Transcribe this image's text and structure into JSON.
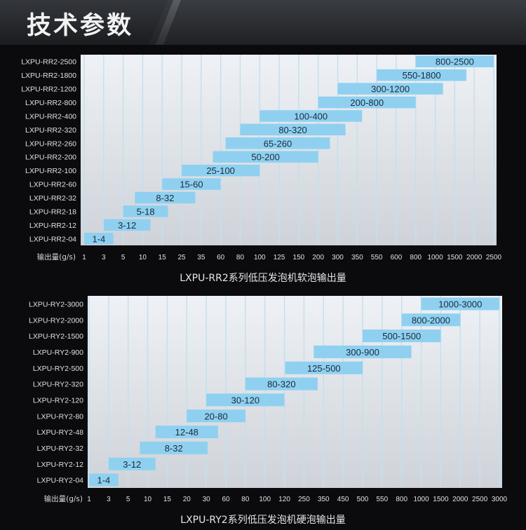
{
  "header": {
    "title": "技术参数"
  },
  "chart_data": [
    {
      "type": "bar",
      "caption": "LXPU-RR2系列低压发泡机软泡输出量",
      "xlabel": "输出量(g/s)",
      "x_ticks": [
        "1",
        "3",
        "5",
        "10",
        "15",
        "25",
        "35",
        "60",
        "80",
        "100",
        "125",
        "150",
        "200",
        "300",
        "350",
        "550",
        "600",
        "800",
        "1000",
        "1500",
        "2000",
        "2500"
      ],
      "bar_color": "#8fd0f0",
      "models": [
        {
          "name": "LXPU-RR2-2500",
          "label": "800-2500",
          "min": 800,
          "max": 2500
        },
        {
          "name": "LXPU-RR2-1800",
          "label": "550-1800",
          "min": 550,
          "max": 1800
        },
        {
          "name": "LXPU-RR2-1200",
          "label": "300-1200",
          "min": 300,
          "max": 1200
        },
        {
          "name": "LXPU-RR2-800",
          "label": "200-800",
          "min": 200,
          "max": 800
        },
        {
          "name": "LXPU-RR2-400",
          "label": "100-400",
          "min": 100,
          "max": 400
        },
        {
          "name": "LXPU-RR2-320",
          "label": "80-320",
          "min": 80,
          "max": 320
        },
        {
          "name": "LXPU-RR2-260",
          "label": "65-260",
          "min": 65,
          "max": 260
        },
        {
          "name": "LXPU-RR2-200",
          "label": "50-200",
          "min": 50,
          "max": 200
        },
        {
          "name": "LXPU-RR2-100",
          "label": "25-100",
          "min": 25,
          "max": 100
        },
        {
          "name": "LXPU-RR2-60",
          "label": "15-60",
          "min": 15,
          "max": 60
        },
        {
          "name": "LXPU-RR2-32",
          "label": "8-32",
          "min": 8,
          "max": 32
        },
        {
          "name": "LXPU-RR2-18",
          "label": "5-18",
          "min": 5,
          "max": 18
        },
        {
          "name": "LXPU-RR2-12",
          "label": "3-12",
          "min": 3,
          "max": 12
        },
        {
          "name": "LXPU-RR2-04",
          "label": "1-4",
          "min": 1,
          "max": 4
        }
      ]
    },
    {
      "type": "bar",
      "caption": "LXPU-RY2系列低压发泡机硬泡输出量",
      "xlabel": "输出量(g/s)",
      "x_ticks": [
        "1",
        "3",
        "5",
        "10",
        "15",
        "20",
        "30",
        "60",
        "80",
        "100",
        "120",
        "250",
        "350",
        "450",
        "500",
        "550",
        "800",
        "1000",
        "1500",
        "2000",
        "2500",
        "3000"
      ],
      "bar_color": "#8fd0f0",
      "models": [
        {
          "name": "LXPU-RY2-3000",
          "label": "1000-3000",
          "min": 1000,
          "max": 3000
        },
        {
          "name": "LXPU-RY2-2000",
          "label": "800-2000",
          "min": 800,
          "max": 2000
        },
        {
          "name": "LXPU-RY2-1500",
          "label": "500-1500",
          "min": 500,
          "max": 1500
        },
        {
          "name": "LXPU-RY2-900",
          "label": "300-900",
          "min": 300,
          "max": 900
        },
        {
          "name": "LXPU-RY2-500",
          "label": "125-500",
          "min": 125,
          "max": 500
        },
        {
          "name": "LXPU-RY2-320",
          "label": "80-320",
          "min": 80,
          "max": 320
        },
        {
          "name": "LXPU-RY2-120",
          "label": "30-120",
          "min": 30,
          "max": 120
        },
        {
          "name": "LXPU-RY2-80",
          "label": "20-80",
          "min": 20,
          "max": 80
        },
        {
          "name": "LXPU-RY2-48",
          "label": "12-48",
          "min": 12,
          "max": 48
        },
        {
          "name": "LXPU-RY2-32",
          "label": "8-32",
          "min": 8,
          "max": 32
        },
        {
          "name": "LXPU-RY2-12",
          "label": "3-12",
          "min": 3,
          "max": 12
        },
        {
          "name": "LXPU-RY2-04",
          "label": "1-4",
          "min": 1,
          "max": 4
        }
      ]
    }
  ]
}
